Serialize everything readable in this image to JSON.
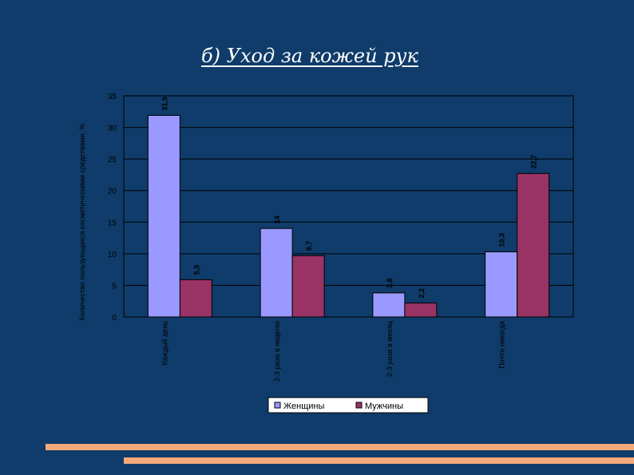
{
  "slide": {
    "title": "б) Уход за кожей рук"
  },
  "colors": {
    "background": "#0f3c6a",
    "plot_area": "#0f3c6a",
    "gridline": "#000000",
    "series_women": "#9999ff",
    "series_men": "#993366",
    "legend_bg": "#ffffff",
    "stripe": "#f4a97a"
  },
  "chart_data": {
    "type": "bar",
    "title": "",
    "xlabel": "",
    "ylabel": "Количество пользующихся косметическими средствами, %",
    "categories": [
      "Каждый день",
      "2-3 раза в неделю",
      "2-3 раза в месяц",
      "Почти никогда"
    ],
    "series": [
      {
        "name": "Женщины",
        "values": [
          31.9,
          14,
          3.8,
          10.3
        ],
        "labels": [
          "31,9",
          "14",
          "3,8",
          "10,3"
        ]
      },
      {
        "name": "Мужчины",
        "values": [
          5.9,
          9.7,
          2.2,
          22.7
        ],
        "labels": [
          "5,9",
          "9,7",
          "2,2",
          "22,7"
        ]
      }
    ],
    "ylim": [
      0,
      35
    ],
    "yticks": [
      0,
      5,
      10,
      15,
      20,
      25,
      30,
      35
    ],
    "grid": true,
    "legend_position": "bottom"
  }
}
